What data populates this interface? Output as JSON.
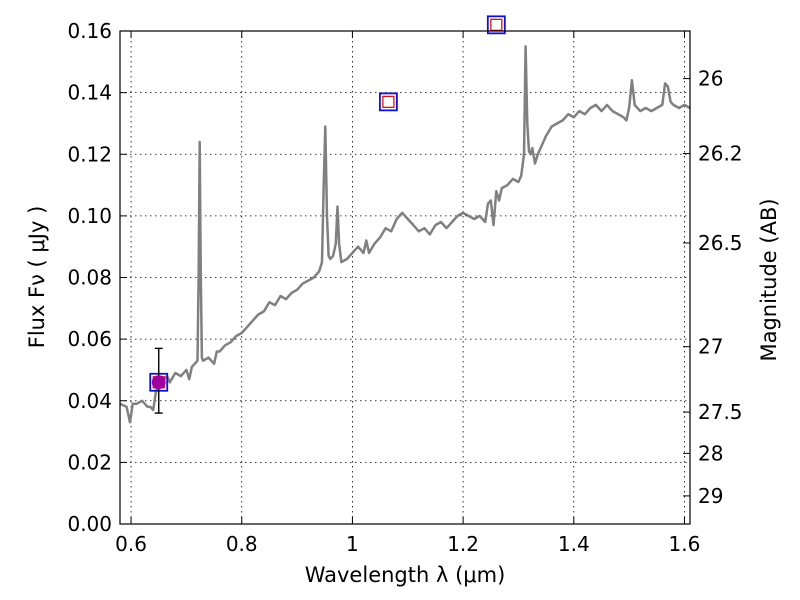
{
  "chart_data": {
    "type": "line",
    "title": "",
    "xlabel": "Wavelength  λ (μm)",
    "ylabel": "Flux  Fν  ( μJy )",
    "y2label": "Magnitude (AB)",
    "xlim": [
      0.58,
      1.61
    ],
    "ylim": [
      0.0,
      0.16
    ],
    "grid": true,
    "x_ticks": [
      0.6,
      0.8,
      1.0,
      1.2,
      1.4,
      1.6
    ],
    "x_tick_labels": [
      "0.6",
      "0.8",
      "1",
      "1.2",
      "1.4",
      "1.6"
    ],
    "y_ticks": [
      0.0,
      0.02,
      0.04,
      0.06,
      0.08,
      0.1,
      0.12,
      0.14,
      0.16
    ],
    "y_tick_labels": [
      "0.00",
      "0.02",
      "0.04",
      "0.06",
      "0.08",
      "0.10",
      "0.12",
      "0.14",
      "0.16"
    ],
    "y2_ticks": [
      26,
      26.2,
      26.5,
      27,
      27.5,
      28,
      29
    ],
    "y2_tick_labels": [
      "26",
      "26.2",
      "26.5",
      "27",
      "27.5",
      "28",
      "29"
    ],
    "spectrum": {
      "color": "#808080",
      "x": [
        0.58,
        0.592,
        0.598,
        0.603,
        0.61,
        0.62,
        0.63,
        0.635,
        0.64,
        0.645,
        0.65,
        0.66,
        0.665,
        0.67,
        0.68,
        0.69,
        0.7,
        0.705,
        0.71,
        0.715,
        0.72,
        0.722,
        0.724,
        0.726,
        0.728,
        0.73,
        0.74,
        0.75,
        0.755,
        0.76,
        0.77,
        0.78,
        0.79,
        0.8,
        0.81,
        0.82,
        0.83,
        0.84,
        0.85,
        0.86,
        0.87,
        0.88,
        0.89,
        0.9,
        0.91,
        0.92,
        0.93,
        0.94,
        0.945,
        0.948,
        0.951,
        0.954,
        0.957,
        0.96,
        0.965,
        0.97,
        0.973,
        0.976,
        0.98,
        0.99,
        1.0,
        1.01,
        1.02,
        1.025,
        1.03,
        1.04,
        1.05,
        1.06,
        1.07,
        1.08,
        1.09,
        1.1,
        1.11,
        1.12,
        1.13,
        1.14,
        1.15,
        1.16,
        1.17,
        1.18,
        1.19,
        1.2,
        1.21,
        1.22,
        1.23,
        1.24,
        1.245,
        1.25,
        1.255,
        1.26,
        1.265,
        1.27,
        1.28,
        1.29,
        1.3,
        1.305,
        1.31,
        1.313,
        1.316,
        1.319,
        1.322,
        1.325,
        1.33,
        1.335,
        1.34,
        1.35,
        1.36,
        1.37,
        1.38,
        1.39,
        1.4,
        1.41,
        1.42,
        1.43,
        1.44,
        1.45,
        1.46,
        1.47,
        1.48,
        1.49,
        1.495,
        1.5,
        1.505,
        1.51,
        1.52,
        1.53,
        1.54,
        1.55,
        1.56,
        1.565,
        1.57,
        1.575,
        1.58,
        1.59,
        1.6,
        1.61
      ],
      "y": [
        0.039,
        0.038,
        0.033,
        0.039,
        0.039,
        0.04,
        0.038,
        0.038,
        0.037,
        0.043,
        0.046,
        0.047,
        0.048,
        0.046,
        0.049,
        0.048,
        0.05,
        0.047,
        0.051,
        0.052,
        0.053,
        0.08,
        0.124,
        0.08,
        0.054,
        0.053,
        0.054,
        0.052,
        0.056,
        0.056,
        0.058,
        0.059,
        0.061,
        0.062,
        0.064,
        0.066,
        0.068,
        0.069,
        0.072,
        0.071,
        0.074,
        0.073,
        0.075,
        0.076,
        0.078,
        0.079,
        0.08,
        0.082,
        0.085,
        0.11,
        0.129,
        0.1,
        0.087,
        0.086,
        0.087,
        0.091,
        0.103,
        0.091,
        0.085,
        0.086,
        0.088,
        0.09,
        0.088,
        0.092,
        0.088,
        0.091,
        0.093,
        0.096,
        0.095,
        0.099,
        0.101,
        0.099,
        0.097,
        0.095,
        0.096,
        0.094,
        0.097,
        0.098,
        0.096,
        0.098,
        0.1,
        0.101,
        0.1,
        0.099,
        0.1,
        0.098,
        0.104,
        0.105,
        0.097,
        0.108,
        0.105,
        0.109,
        0.11,
        0.112,
        0.111,
        0.113,
        0.12,
        0.155,
        0.13,
        0.121,
        0.12,
        0.122,
        0.117,
        0.12,
        0.122,
        0.126,
        0.129,
        0.13,
        0.131,
        0.133,
        0.132,
        0.134,
        0.133,
        0.135,
        0.136,
        0.134,
        0.136,
        0.134,
        0.133,
        0.132,
        0.131,
        0.135,
        0.144,
        0.136,
        0.134,
        0.135,
        0.134,
        0.135,
        0.136,
        0.143,
        0.142,
        0.137,
        0.136,
        0.135,
        0.136,
        0.135
      ]
    },
    "photometry": [
      {
        "x": 0.65,
        "y": 0.046,
        "yerr_low": 0.036,
        "yerr_high": 0.057
      }
    ],
    "model_points": [
      {
        "x": 0.65,
        "y": 0.046
      },
      {
        "x": 1.065,
        "y": 0.137
      },
      {
        "x": 1.26,
        "y": 0.162
      }
    ]
  }
}
